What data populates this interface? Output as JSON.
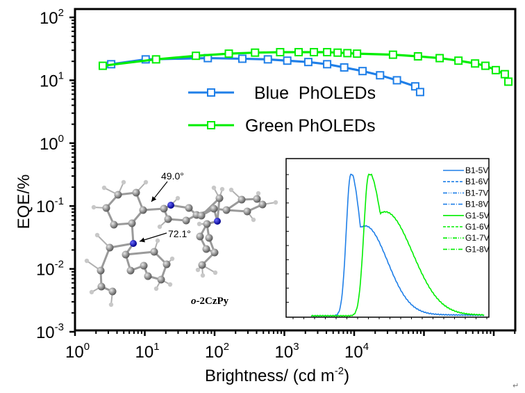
{
  "chart_data": {
    "type": "line",
    "title": "",
    "xlabel": "Brightness/ (cd m",
    "xlabel_sup": "-2",
    "xlabel_close": ")",
    "ylabel": "EQE/%",
    "xscale": "log",
    "yscale": "log",
    "xlim": [
      1,
      200000
    ],
    "ylim": [
      0.001,
      100
    ],
    "x_ticks": [
      {
        "value": 1,
        "base": "10",
        "exp": "0"
      },
      {
        "value": 10,
        "base": "10",
        "exp": "1"
      },
      {
        "value": 100,
        "base": "10",
        "exp": "2"
      },
      {
        "value": 1000,
        "base": "10",
        "exp": "3"
      },
      {
        "value": 10000,
        "base": "10",
        "exp": "4"
      }
    ],
    "y_ticks": [
      {
        "value": 100,
        "base": "10",
        "exp": "2"
      },
      {
        "value": 10,
        "base": "10",
        "exp": "1"
      },
      {
        "value": 1,
        "base": "10",
        "exp": "0"
      },
      {
        "value": 0.1,
        "base": "10",
        "exp": "-1"
      },
      {
        "value": 0.01,
        "base": "10",
        "exp": "-2"
      },
      {
        "value": 0.001,
        "base": "10",
        "exp": "-3"
      }
    ],
    "grid": false,
    "legend_position": "top-center",
    "series": [
      {
        "name": "Blue  PhOLEDs",
        "color": "#1f7fe8",
        "marker": "open-square",
        "x": [
          3.3,
          10.3,
          80,
          250,
          580,
          1100,
          2200,
          4100,
          7200,
          13200,
          23500,
          41000,
          75000,
          88000
        ],
        "y": [
          18.0,
          21.5,
          22.5,
          22.0,
          21.5,
          20.5,
          19.5,
          18.0,
          16.0,
          14.0,
          12.0,
          10.0,
          8.0,
          6.5
        ]
      },
      {
        "name": "Green PhOLEDs",
        "color": "#00ee00",
        "marker": "open-square",
        "x": [
          2.5,
          14.5,
          54,
          160,
          380,
          870,
          1600,
          2650,
          4100,
          5800,
          8000,
          11000,
          36000,
          82000,
          168000,
          312000,
          540000,
          760000,
          1070000,
          1440000,
          1620000
        ],
        "y": [
          17.0,
          21.5,
          24.5,
          26.5,
          27.5,
          28.0,
          28.0,
          28.0,
          28.0,
          27.5,
          27.0,
          26.5,
          25.5,
          24.0,
          22.5,
          20.5,
          18.5,
          17.0,
          14.5,
          12.5,
          9.5
        ]
      }
    ],
    "inset": {
      "type": "line",
      "description": "Normalized electroluminescence spectra (unlabeled axes)",
      "legend": [
        {
          "label": "B1-5V",
          "color": "#1f7fe8",
          "dash": "solid"
        },
        {
          "label": "B1-6V",
          "color": "#1f7fe8",
          "dash": "dash"
        },
        {
          "label": "B1-7V",
          "color": "#1f7fe8",
          "dash": "dash-dot-dot"
        },
        {
          "label": "B1-8V",
          "color": "#1f7fe8",
          "dash": "dash-dot"
        },
        {
          "label": "G1-5V",
          "color": "#00ee00",
          "dash": "solid"
        },
        {
          "label": "G1-6V",
          "color": "#00ee00",
          "dash": "dash"
        },
        {
          "label": "G1-7V",
          "color": "#00ee00",
          "dash": "dash-dot-dot"
        },
        {
          "label": "G1-8V",
          "color": "#00ee00",
          "dash": "dash-dot"
        }
      ],
      "blue_spectrum": {
        "peak_position": 0.24,
        "shoulder_position": 0.31
      },
      "green_spectrum": {
        "peak_position": 0.35,
        "shoulder_position": 0.42
      }
    },
    "annotations": {
      "molecule_name_prefix": "o",
      "molecule_name_rest": "-2CzPy",
      "angle_1": "49.0°",
      "angle_2": "72.1°"
    }
  },
  "page": {
    "return_glyph": "↵"
  }
}
